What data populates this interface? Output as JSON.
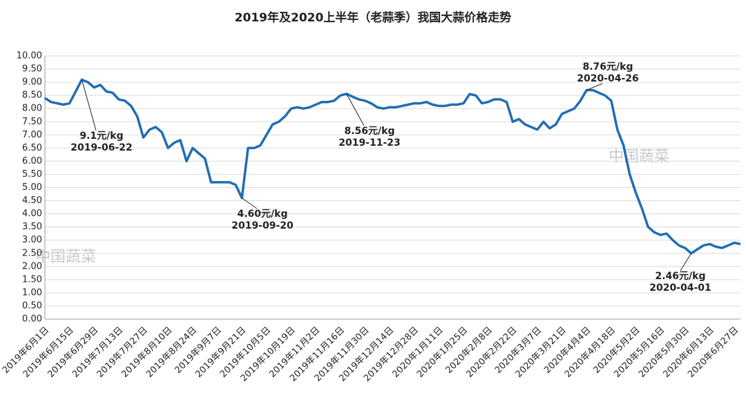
{
  "chart_data": {
    "type": "line",
    "title": "2019年及2020上半年（老蒜季）我国大蒜价格走势",
    "watermark": "中国蔬菜",
    "categories": [
      "2019年6月1日",
      null,
      null,
      null,
      "2019年6月15日",
      null,
      null,
      null,
      "2019年6月29日",
      null,
      null,
      null,
      "2019年7月13日",
      null,
      null,
      null,
      "2019年7月27日",
      null,
      null,
      null,
      "2019年8月10日",
      null,
      null,
      null,
      "2019年8月24日",
      null,
      null,
      null,
      "2019年9月7日",
      null,
      null,
      null,
      "2019年9月21日",
      null,
      null,
      null,
      "2019年10月5日",
      null,
      null,
      null,
      "2019年10月19日",
      null,
      null,
      null,
      "2019年11月2日",
      null,
      null,
      null,
      "2019年11月16日",
      null,
      null,
      null,
      "2019年11月30日",
      null,
      null,
      null,
      "2019年12月14日",
      null,
      null,
      null,
      "2019年12月28日",
      null,
      null,
      null,
      "2020年1月11日",
      null,
      null,
      null,
      "2020年1月25日",
      null,
      null,
      null,
      "2020年2月8日",
      null,
      null,
      null,
      "2020年2月22日",
      null,
      null,
      null,
      "2020年3月7日",
      null,
      null,
      null,
      "2020年3月21日",
      null,
      null,
      null,
      "2020年4月4日",
      null,
      null,
      null,
      "2020年4月18日",
      null,
      null,
      null,
      "2020年5月2日",
      null,
      null,
      null,
      "2020年5月16日",
      null,
      null,
      null,
      "2020年5月30日",
      null,
      null,
      null,
      "2020年6月13日",
      null,
      null,
      null,
      "2020年6月27日",
      null
    ],
    "series": [
      {
        "color": "#1f6db3",
        "values": [
          8.4,
          8.25,
          8.2,
          8.15,
          8.2,
          8.65,
          9.1,
          9.0,
          8.8,
          8.9,
          8.65,
          8.6,
          8.35,
          8.3,
          8.1,
          7.7,
          6.9,
          7.2,
          7.3,
          7.1,
          6.5,
          6.7,
          6.8,
          6.0,
          6.5,
          6.3,
          6.1,
          5.2,
          5.2,
          5.2,
          5.2,
          5.1,
          4.6,
          6.5,
          6.5,
          6.6,
          7.0,
          7.4,
          7.5,
          7.7,
          8.0,
          8.05,
          8.0,
          8.05,
          8.15,
          8.25,
          8.25,
          8.3,
          8.5,
          8.56,
          8.45,
          8.35,
          8.3,
          8.2,
          8.05,
          8.0,
          8.05,
          8.05,
          8.1,
          8.15,
          8.2,
          8.2,
          8.25,
          8.15,
          8.1,
          8.1,
          8.15,
          8.15,
          8.2,
          8.55,
          8.5,
          8.2,
          8.25,
          8.35,
          8.35,
          8.25,
          7.5,
          7.6,
          7.4,
          7.3,
          7.2,
          7.5,
          7.25,
          7.4,
          7.8,
          7.9,
          8.0,
          8.3,
          8.7,
          8.7,
          8.6,
          8.5,
          8.3,
          7.2,
          6.6,
          5.5,
          4.8,
          4.2,
          3.5,
          3.3,
          3.2,
          3.25,
          3.0,
          2.8,
          2.7,
          2.5,
          2.65,
          2.8,
          2.85,
          2.75,
          2.7,
          2.8,
          2.9,
          2.85
        ]
      }
    ],
    "ylim": [
      0,
      10
    ],
    "yticks": [
      {
        "value": 0,
        "label": "0.00"
      },
      {
        "value": 0.5,
        "label": "0.50"
      },
      {
        "value": 1,
        "label": "1.00"
      },
      {
        "value": 1.5,
        "label": "1.50"
      },
      {
        "value": 2,
        "label": "2.00"
      },
      {
        "value": 2.5,
        "label": "2.50"
      },
      {
        "value": 3,
        "label": "3.00"
      },
      {
        "value": 3.5,
        "label": "3.50"
      },
      {
        "value": 4,
        "label": "4.00"
      },
      {
        "value": 4.5,
        "label": "4.50"
      },
      {
        "value": 5,
        "label": "5.00"
      },
      {
        "value": 5.5,
        "label": "5.50"
      },
      {
        "value": 6,
        "label": "6.00"
      },
      {
        "value": 6.5,
        "label": "6.50"
      },
      {
        "value": 7,
        "label": "7.00"
      },
      {
        "value": 7.5,
        "label": "7.50"
      },
      {
        "value": 8,
        "label": "8.00"
      },
      {
        "value": 8.5,
        "label": "8.50"
      },
      {
        "value": 9,
        "label": "9.00"
      },
      {
        "value": 9.5,
        "label": "9.50"
      },
      {
        "value": 10,
        "label": "10.00"
      }
    ],
    "grid": true,
    "annotations": [
      {
        "text": "9.1元/kg",
        "date": "2019-06-22"
      },
      {
        "text": "4.60元/kg",
        "date": "2019-09-20"
      },
      {
        "text": "8.56元/kg",
        "date": "2019-11-23"
      },
      {
        "text": "8.76元/kg",
        "date": "2020-04-26"
      },
      {
        "text": "2.46元/kg",
        "date": "2020-04-01"
      }
    ]
  }
}
